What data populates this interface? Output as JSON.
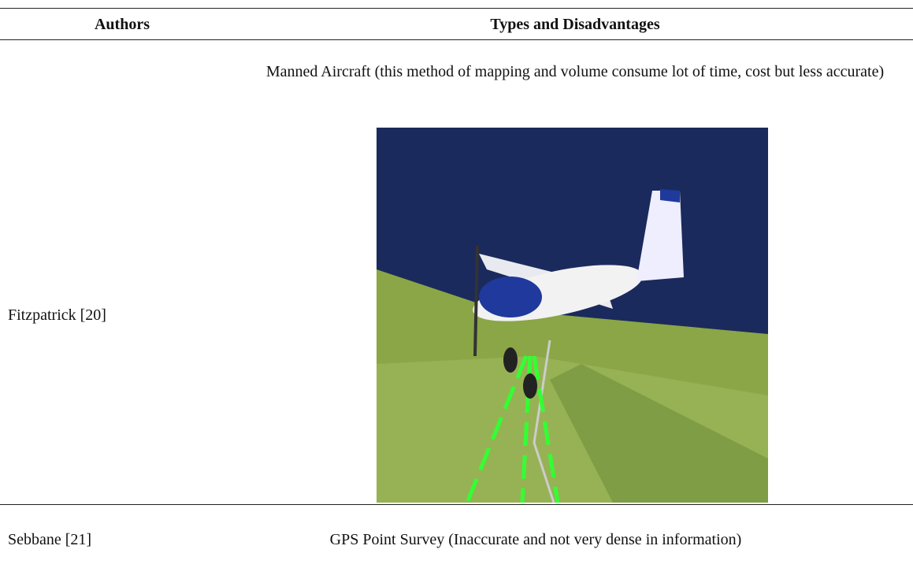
{
  "table": {
    "headers": [
      "Authors",
      "Types and Disadvantages"
    ],
    "rows": [
      [
        "Fitzpatrick [20]",
        "Manned Aircraft (this method of mapping and volume consume lot of time, cost but less accurate)"
      ],
      [
        "Sebbane [21]",
        "GPS Point Survey (Inaccurate and not very dense in information)"
      ]
    ]
  }
}
